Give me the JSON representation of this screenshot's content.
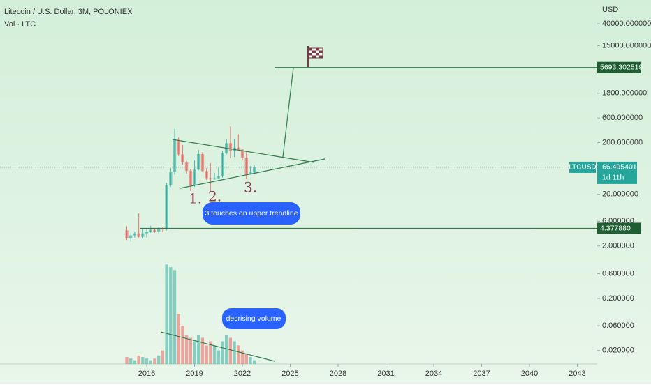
{
  "header": {
    "title": "Litecoin / U.S. Dollar, 3M, POLONIEX",
    "volume_label": "Vol · LTC",
    "currency": "USD"
  },
  "chart_data": {
    "type": "candlestick",
    "log_scale": true,
    "x": [
      2014.75,
      2015,
      2015.25,
      2015.5,
      2015.75,
      2016,
      2016.25,
      2016.5,
      2016.75,
      2017,
      2017.25,
      2017.5,
      2017.75,
      2018,
      2018.25,
      2018.5,
      2018.75,
      2019,
      2019.25,
      2019.5,
      2019.75,
      2020,
      2020.25,
      2020.5,
      2020.75,
      2021,
      2021.25,
      2021.5,
      2021.75,
      2022,
      2022.25,
      2022.5,
      2022.75
    ],
    "open": [
      4.0,
      2.8,
      3.2,
      3.5,
      3.0,
      3.5,
      3.8,
      4.1,
      3.8,
      4.4,
      4.2,
      30,
      55,
      225,
      118,
      82,
      57,
      30,
      60,
      120,
      56,
      41,
      39,
      41,
      45,
      125,
      195,
      140,
      160,
      146,
      102,
      48,
      53
    ],
    "high": [
      4.8,
      3.6,
      3.8,
      8.5,
      4.3,
      4.4,
      4.9,
      4.3,
      4.6,
      4.6,
      33,
      65,
      370,
      250,
      180,
      88,
      62,
      90,
      145,
      130,
      64,
      80,
      52,
      65,
      140,
      230,
      410,
      230,
      290,
      150,
      135,
      70,
      72
    ],
    "low": [
      2.6,
      2.4,
      2.9,
      2.9,
      2.8,
      2.9,
      3.6,
      3.6,
      3.5,
      3.7,
      4.0,
      28,
      48,
      110,
      75,
      50,
      23,
      28,
      58,
      55,
      38,
      23,
      38,
      40,
      42,
      118,
      100,
      105,
      140,
      90,
      40,
      48,
      50
    ],
    "close": [
      2.8,
      3.2,
      3.5,
      3.0,
      3.5,
      3.8,
      4.1,
      3.8,
      4.4,
      4.2,
      30,
      55,
      225,
      118,
      82,
      57,
      30,
      60,
      120,
      56,
      41,
      39,
      41,
      45,
      125,
      195,
      140,
      160,
      146,
      102,
      48,
      53,
      66.495401
    ],
    "volume": [
      0.015,
      0.014,
      0.013,
      0.016,
      0.015,
      0.014,
      0.013,
      0.014,
      0.016,
      0.02,
      0.9,
      0.8,
      0.7,
      0.1,
      0.06,
      0.04,
      0.035,
      0.03,
      0.04,
      0.035,
      0.025,
      0.03,
      0.025,
      0.02,
      0.03,
      0.04,
      0.035,
      0.03,
      0.025,
      0.02,
      0.017,
      0.015,
      0.013
    ],
    "up_color": "#26a69a",
    "down_color": "#ef5350",
    "xlim": [
      2006.8,
      2044.25
    ],
    "xticks": [
      2016,
      2019,
      2022,
      2025,
      2028,
      2031,
      2034,
      2037,
      2040,
      2043
    ],
    "ylim": [
      1,
      115000
    ],
    "yticks": [
      {
        "value": 40000,
        "label": "40000.000000"
      },
      {
        "value": 15000,
        "label": "15000.000000"
      },
      {
        "value": 1800,
        "label": "1800.000000"
      },
      {
        "value": 600,
        "label": "600.000000"
      },
      {
        "value": 200,
        "label": "200.000000"
      },
      {
        "value": 20,
        "label": "20.000000"
      },
      {
        "value": 6,
        "label": "6.000000"
      },
      {
        "value": 2,
        "label": "2.000000"
      }
    ],
    "volume_ylim": [
      0.011,
      1.2
    ],
    "volume_yticks": [
      {
        "value": 0.6,
        "label": "0.600000"
      },
      {
        "value": 0.2,
        "label": "0.200000"
      },
      {
        "value": 0.06,
        "label": "0.060000"
      },
      {
        "value": 0.02,
        "label": "0.020000"
      }
    ]
  },
  "symbol_label": "LTCUSD",
  "last_price": 66.495401,
  "countdown": "1d 11h",
  "levels": [
    5693.302519,
    {
      "value": 4.37788,
      "label": "4.377880"
    }
  ],
  "annotations": {
    "touches": [
      "1.",
      "2.",
      "3."
    ],
    "upper_note": "3 touches on upper trendline",
    "volume_note": "decrising volume"
  }
}
